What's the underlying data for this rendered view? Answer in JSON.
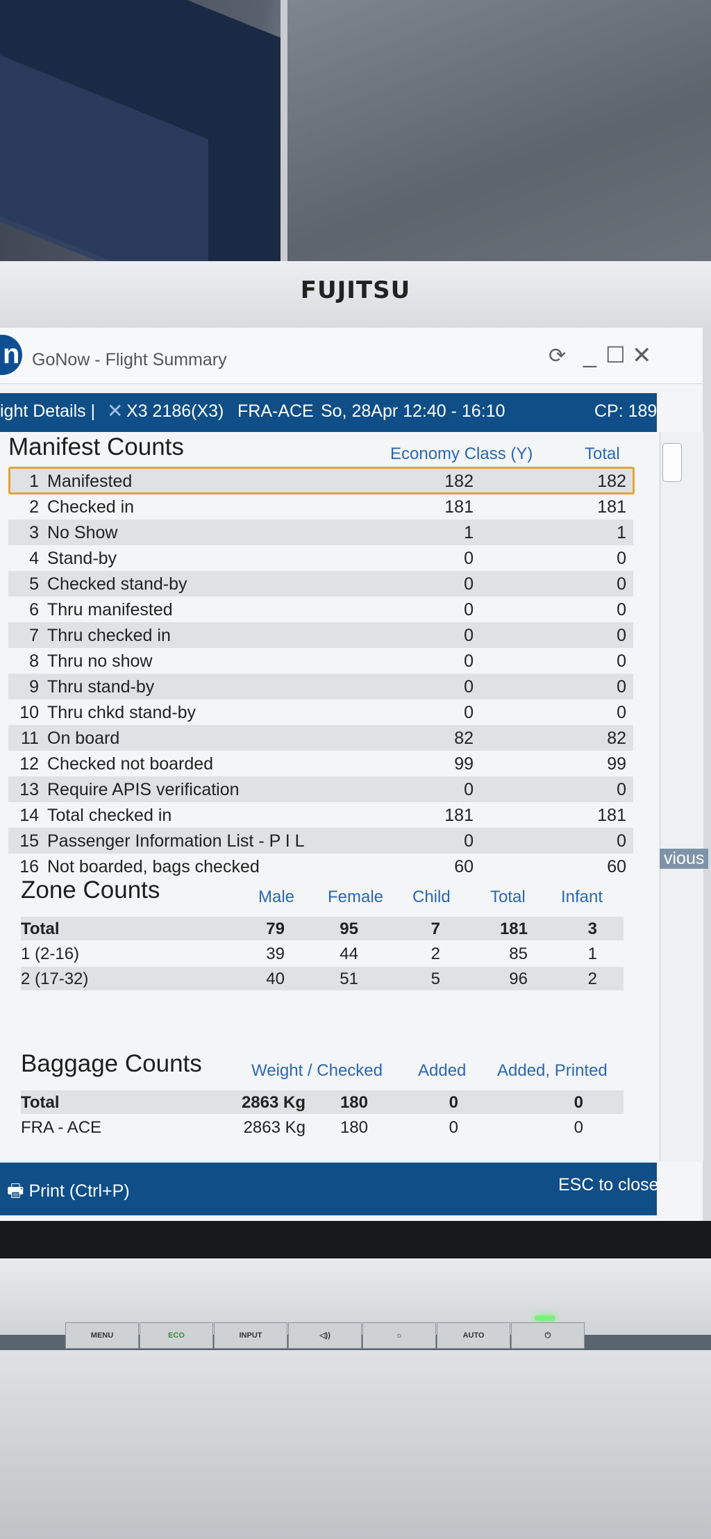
{
  "brand": "FUJITSU",
  "window": {
    "title": "GoNow - Flight Summary",
    "logo_letter": "n"
  },
  "flight_bar": {
    "tab_label": "ight Details |",
    "flight": "X3 2186(X3)",
    "route": "FRA-ACE",
    "date_time": "So, 28Apr 12:40 - 16:10",
    "cp": "CP: 189"
  },
  "manifest": {
    "title": "Manifest Counts",
    "col_economy": "Economy Class (Y)",
    "col_total": "Total",
    "rows": [
      {
        "num": "1",
        "label": "Manifested",
        "economy": "182",
        "total": "182"
      },
      {
        "num": "2",
        "label": "Checked in",
        "economy": "181",
        "total": "181"
      },
      {
        "num": "3",
        "label": "No Show",
        "economy": "1",
        "total": "1"
      },
      {
        "num": "4",
        "label": "Stand-by",
        "economy": "0",
        "total": "0"
      },
      {
        "num": "5",
        "label": "Checked stand-by",
        "economy": "0",
        "total": "0"
      },
      {
        "num": "6",
        "label": "Thru manifested",
        "economy": "0",
        "total": "0"
      },
      {
        "num": "7",
        "label": "Thru checked in",
        "economy": "0",
        "total": "0"
      },
      {
        "num": "8",
        "label": "Thru no show",
        "economy": "0",
        "total": "0"
      },
      {
        "num": "9",
        "label": "Thru stand-by",
        "economy": "0",
        "total": "0"
      },
      {
        "num": "10",
        "label": "Thru chkd stand-by",
        "economy": "0",
        "total": "0"
      },
      {
        "num": "11",
        "label": "On board",
        "economy": "82",
        "total": "82"
      },
      {
        "num": "12",
        "label": "Checked not boarded",
        "economy": "99",
        "total": "99"
      },
      {
        "num": "13",
        "label": "Require APIS verification",
        "economy": "0",
        "total": "0"
      },
      {
        "num": "14",
        "label": "Total checked in",
        "economy": "181",
        "total": "181"
      },
      {
        "num": "15",
        "label": "Passenger Information List - P I L",
        "economy": "0",
        "total": "0"
      },
      {
        "num": "16",
        "label": "Not boarded, bags checked",
        "economy": "60",
        "total": "60"
      }
    ]
  },
  "zone": {
    "title": "Zone Counts",
    "headers": {
      "male": "Male",
      "female": "Female",
      "child": "Child",
      "total": "Total",
      "infant": "Infant"
    },
    "rows": [
      {
        "label": "Total",
        "male": "79",
        "female": "95",
        "child": "7",
        "total": "181",
        "infant": "3"
      },
      {
        "label": "1 (2-16)",
        "male": "39",
        "female": "44",
        "child": "2",
        "total": "85",
        "infant": "1"
      },
      {
        "label": "2 (17-32)",
        "male": "40",
        "female": "51",
        "child": "5",
        "total": "96",
        "infant": "2"
      }
    ]
  },
  "baggage": {
    "title": "Baggage Counts",
    "headers": {
      "weight_checked": "Weight  /  Checked",
      "added": "Added",
      "added_printed": "Added, Printed"
    },
    "rows": [
      {
        "label": "Total",
        "weight": "2863 Kg",
        "checked": "180",
        "added": "0",
        "added_printed": "0"
      },
      {
        "label": "FRA - ACE",
        "weight": "2863 Kg",
        "checked": "180",
        "added": "0",
        "added_printed": "0"
      }
    ]
  },
  "footer": {
    "print_label": "Print (Ctrl+P)",
    "esc_label": "ESC to close",
    "prev_label": "vious"
  },
  "monitor_buttons": [
    "MENU",
    "ECO",
    "INPUT",
    "◁))",
    "☼",
    "AUTO",
    "⏻"
  ]
}
